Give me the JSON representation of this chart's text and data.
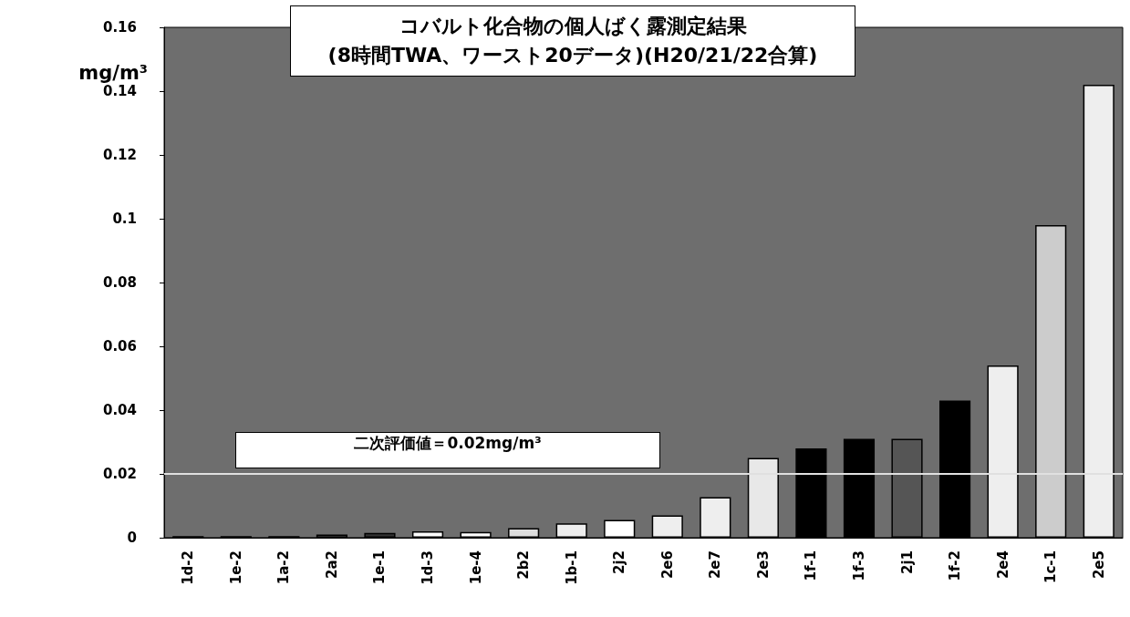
{
  "chart_data": {
    "type": "bar",
    "title": "コバルト化合物の個人ばく露測定結果\n(8時間TWA、ワースト20データ)(H20/21/22合算)",
    "ylabel": "mg/m³",
    "categories": [
      "1d-2",
      "1e-2",
      "1a-2",
      "2a2",
      "1e-1",
      "1d-3",
      "1e-4",
      "2b2",
      "1b-1",
      "2j2",
      "2e6",
      "2e7",
      "2e3",
      "1f-1",
      "1f-3",
      "2j1",
      "1f-2",
      "2e4",
      "1c-1",
      "2e5"
    ],
    "values": [
      0.0005,
      0.0005,
      0.0005,
      0.001,
      0.0015,
      0.002,
      0.0018,
      0.003,
      0.0045,
      0.0056,
      0.007,
      0.0127,
      0.025,
      0.028,
      0.031,
      0.031,
      0.043,
      0.054,
      0.098,
      0.142
    ],
    "colors": [
      "#222222",
      "#222222",
      "#333333",
      "#555555",
      "#333333",
      "#ffffff",
      "#ffffff",
      "#dddddd",
      "#eeeeee",
      "#ffffff",
      "#eeeeee",
      "#eeeeee",
      "#e8e8e8",
      "#000000",
      "#000000",
      "#555555",
      "#000000",
      "#eeeeee",
      "#cccccc",
      "#eeeeee"
    ],
    "ylim": [
      0,
      0.16
    ],
    "yticks": [
      0,
      0.02,
      0.04,
      0.06,
      0.08,
      0.1,
      0.12,
      0.14,
      0.16
    ],
    "grid": false,
    "ref_lines": [
      {
        "axis": "y",
        "value": 0.02,
        "label": "二次評価値＝0.02mg/m³",
        "color": "#e0e0e0"
      }
    ]
  }
}
